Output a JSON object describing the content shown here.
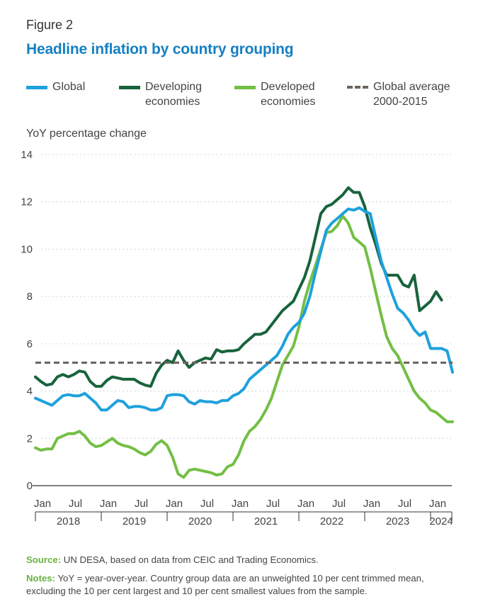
{
  "figure_label": "Figure 2",
  "colors": {
    "title": "#1580c3",
    "global": "#1ea1dc",
    "developing": "#17633c",
    "developed": "#73bf45",
    "average": "#6b6560",
    "footnote_key": "#6ab33f"
  },
  "legend": [
    {
      "key": "global",
      "label": "Global",
      "style": "solid"
    },
    {
      "key": "developing",
      "label": "Developing\neconomies",
      "style": "solid"
    },
    {
      "key": "developed",
      "label": "Developed\neconomies",
      "style": "solid"
    },
    {
      "key": "average",
      "label": "Global average\n2000-2015",
      "style": "dashed"
    }
  ],
  "footer": {
    "source_label": "Source:",
    "source_text": " UN DESA, based on data from CEIC and Trading Economics.",
    "notes_label": "Notes:",
    "notes_text": "  YoY = year-over-year. Country group data are an unweighted 10 per cent trimmed mean, excluding the 10 per cent largest and 10 per cent smallest values from the sample."
  },
  "chart_data": {
    "type": "line",
    "title": "Headline inflation by country grouping",
    "ylabel": "YoY percentage change",
    "xlabel": "",
    "ylim": [
      0,
      14
    ],
    "yticks": [
      0,
      2,
      4,
      6,
      8,
      10,
      12,
      14
    ],
    "x_start": "Jan 2018",
    "x_end": "May 2024",
    "month_ticks": [
      {
        "label": "Jan",
        "index": 0
      },
      {
        "label": "Jul",
        "index": 6
      },
      {
        "label": "Jan",
        "index": 12
      },
      {
        "label": "Jul",
        "index": 18
      },
      {
        "label": "Jan",
        "index": 24
      },
      {
        "label": "Jul",
        "index": 30
      },
      {
        "label": "Jan",
        "index": 36
      },
      {
        "label": "Jul",
        "index": 42
      },
      {
        "label": "Jan",
        "index": 48
      },
      {
        "label": "Jul",
        "index": 54
      },
      {
        "label": "Jan",
        "index": 60
      },
      {
        "label": "Jul",
        "index": 66
      },
      {
        "label": "Jan",
        "index": 72
      }
    ],
    "year_ticks": [
      {
        "label": "2018",
        "start": 0,
        "end": 12
      },
      {
        "label": "2019",
        "start": 12,
        "end": 24
      },
      {
        "label": "2020",
        "start": 24,
        "end": 36
      },
      {
        "label": "2021",
        "start": 36,
        "end": 48
      },
      {
        "label": "2022",
        "start": 48,
        "end": 60
      },
      {
        "label": "2023",
        "start": 60,
        "end": 72
      },
      {
        "label": "2024",
        "start": 72,
        "end": 77
      }
    ],
    "series": [
      {
        "name": "Global",
        "key": "global",
        "values": [
          3.7,
          3.6,
          3.5,
          3.4,
          3.6,
          3.8,
          3.85,
          3.8,
          3.8,
          3.9,
          3.7,
          3.5,
          3.2,
          3.2,
          3.4,
          3.6,
          3.55,
          3.3,
          3.35,
          3.35,
          3.3,
          3.2,
          3.2,
          3.3,
          3.8,
          3.85,
          3.85,
          3.8,
          3.55,
          3.45,
          3.6,
          3.55,
          3.55,
          3.5,
          3.6,
          3.6,
          3.8,
          3.9,
          4.1,
          4.5,
          4.7,
          4.9,
          5.1,
          5.3,
          5.5,
          5.9,
          6.4,
          6.7,
          6.9,
          7.3,
          8.0,
          9.0,
          9.9,
          10.8,
          11.1,
          11.3,
          11.5,
          11.7,
          11.65,
          11.75,
          11.6,
          11.5,
          10.5,
          9.5,
          8.8,
          8.1,
          7.5,
          7.3,
          7.0,
          6.6,
          6.35,
          6.5,
          5.8,
          5.8,
          5.8,
          5.7,
          4.8
        ]
      },
      {
        "name": "Developing economies",
        "key": "developing",
        "values": [
          4.6,
          4.4,
          4.25,
          4.3,
          4.6,
          4.7,
          4.6,
          4.7,
          4.85,
          4.8,
          4.4,
          4.2,
          4.2,
          4.45,
          4.6,
          4.55,
          4.5,
          4.5,
          4.5,
          4.35,
          4.25,
          4.2,
          4.75,
          5.1,
          5.3,
          5.2,
          5.7,
          5.3,
          5.0,
          5.2,
          5.3,
          5.4,
          5.35,
          5.75,
          5.65,
          5.7,
          5.7,
          5.75,
          6.0,
          6.2,
          6.4,
          6.4,
          6.5,
          6.8,
          7.1,
          7.4,
          7.6,
          7.8,
          8.3,
          8.8,
          9.5,
          10.5,
          11.5,
          11.8,
          11.9,
          12.1,
          12.3,
          12.6,
          12.4,
          12.4,
          11.8,
          10.9,
          10.2,
          9.4,
          8.9,
          8.9,
          8.9,
          8.5,
          8.4,
          8.9,
          7.4,
          7.6,
          7.8,
          8.2,
          7.85
        ]
      },
      {
        "name": "Developed economies",
        "key": "developed",
        "values": [
          1.6,
          1.5,
          1.55,
          1.55,
          2.0,
          2.1,
          2.2,
          2.2,
          2.3,
          2.1,
          1.8,
          1.65,
          1.7,
          1.85,
          2.0,
          1.8,
          1.7,
          1.65,
          1.55,
          1.4,
          1.3,
          1.45,
          1.75,
          1.9,
          1.7,
          1.2,
          0.5,
          0.35,
          0.65,
          0.7,
          0.65,
          0.6,
          0.55,
          0.45,
          0.5,
          0.8,
          0.9,
          1.3,
          1.9,
          2.3,
          2.5,
          2.8,
          3.2,
          3.7,
          4.4,
          5.1,
          5.5,
          5.9,
          6.7,
          7.8,
          8.6,
          9.3,
          10.0,
          10.7,
          10.75,
          11.0,
          11.4,
          11.1,
          10.5,
          10.3,
          10.1,
          9.2,
          8.2,
          7.2,
          6.3,
          5.8,
          5.5,
          5.0,
          4.5,
          4.0,
          3.7,
          3.5,
          3.2,
          3.1,
          2.9,
          2.7,
          2.7
        ]
      },
      {
        "name": "Global average 2000-2015",
        "key": "average",
        "style": "dashed",
        "constant": 5.2
      }
    ]
  }
}
